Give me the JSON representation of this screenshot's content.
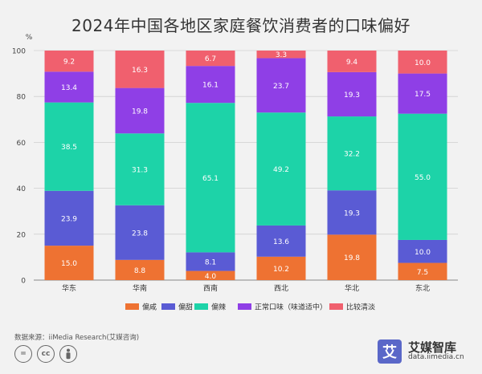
{
  "chart_data": {
    "type": "bar",
    "stacked": true,
    "title": "2024年中国各地区家庭餐饮消费者的口味偏好",
    "ylabel": "%",
    "ylim": [
      0,
      100
    ],
    "yticks": [
      0,
      20,
      40,
      60,
      80,
      100
    ],
    "categories": [
      "华东",
      "华南",
      "西南",
      "西北",
      "华北",
      "东北"
    ],
    "series": [
      {
        "name": "偏咸",
        "color": "#ee7232",
        "values": [
          15.0,
          8.8,
          4.0,
          10.2,
          19.8,
          7.5
        ],
        "labels": [
          "15.0",
          "8.8",
          "4.0",
          "10.2",
          "19.8",
          "7.5"
        ]
      },
      {
        "name": "偏甜",
        "color": "#5a5bd4",
        "values": [
          23.9,
          23.8,
          8.1,
          13.6,
          19.3,
          10.0
        ],
        "labels": [
          "23.9",
          "23.8",
          "8.1",
          "13.6",
          "19.3",
          "10.0"
        ]
      },
      {
        "name": "偏辣",
        "color": "#1dd3a8",
        "values": [
          38.5,
          31.3,
          65.1,
          49.2,
          32.2,
          55.0
        ],
        "labels": [
          "38.5",
          "31.3",
          "65.1",
          "49.2",
          "32.2",
          "55.0"
        ]
      },
      {
        "name": "正常口味（味道适中）",
        "color": "#8f3fe6",
        "values": [
          13.4,
          19.8,
          16.1,
          23.7,
          19.3,
          17.5
        ],
        "labels": [
          "13.4",
          "19.8",
          "16.1",
          "23.7",
          "19.3",
          "17.5"
        ]
      },
      {
        "name": "比较清淡",
        "color": "#f0606e",
        "values": [
          9.2,
          16.3,
          6.7,
          3.3,
          9.4,
          10.0
        ],
        "labels": [
          "9.2",
          "16.3",
          "6.7",
          "3.3",
          "9.4",
          "10.0"
        ]
      }
    ],
    "grid": true,
    "legend": "bottom"
  },
  "footer": {
    "source": "数据来源：iiMedia Research(艾媒咨询)",
    "cc_icons": [
      "=",
      "cc",
      "person"
    ]
  },
  "brand": {
    "mark": "艾",
    "name": "艾媒智库",
    "url": "data.iimedia.cn"
  }
}
